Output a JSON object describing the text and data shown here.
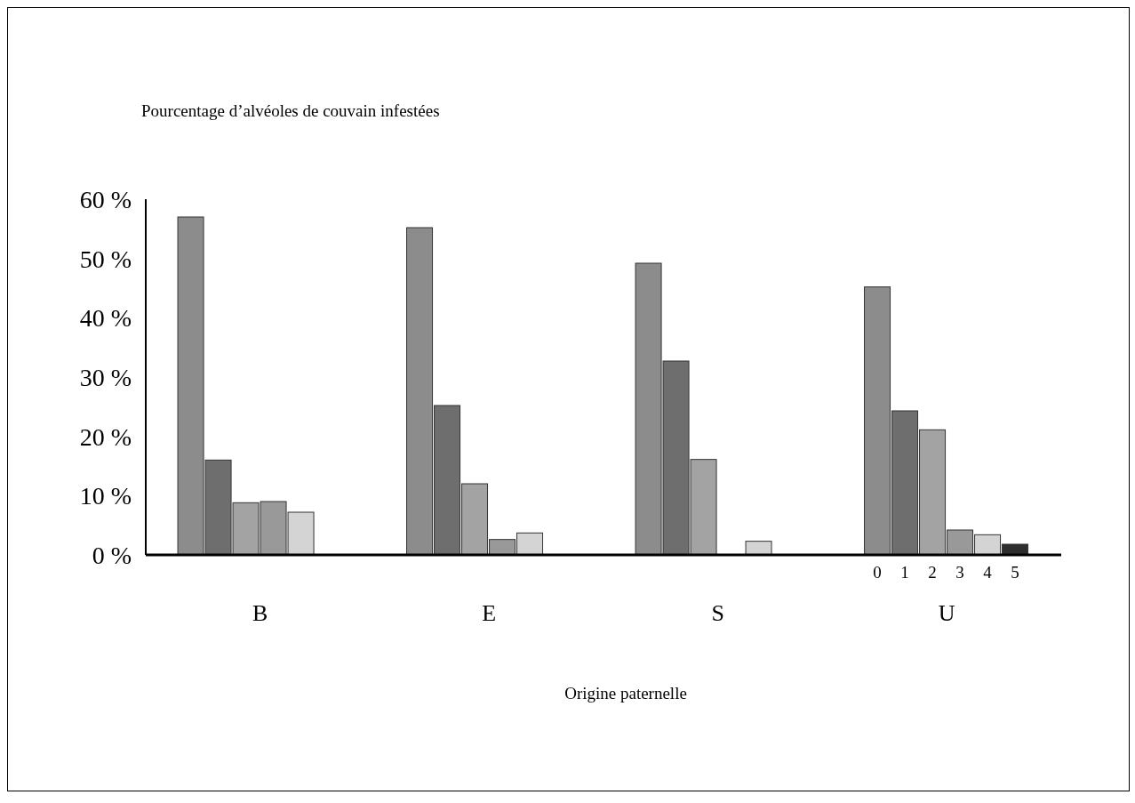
{
  "chart_data": {
    "type": "bar",
    "title": "Pourcentage d’alvéoles de couvain infestées",
    "xlabel": "Origine paternelle",
    "categories": [
      "B",
      "E",
      "S",
      "U"
    ],
    "series": [
      {
        "name": "0",
        "color": "#8c8c8c",
        "values": [
          57,
          55.2,
          49.2,
          45.2
        ]
      },
      {
        "name": "1",
        "color": "#6e6e6e",
        "values": [
          16,
          25.2,
          32.7,
          24.3
        ]
      },
      {
        "name": "2",
        "color": "#a3a3a3",
        "values": [
          8.8,
          12,
          16.1,
          21.1
        ]
      },
      {
        "name": "3",
        "color": "#999999",
        "values": [
          9,
          2.6,
          null,
          4.2
        ]
      },
      {
        "name": "4",
        "color": "#d4d4d4",
        "values": [
          7.2,
          3.7,
          2.3,
          3.4
        ]
      },
      {
        "name": "5",
        "color": "#2e2e2e",
        "values": [
          null,
          null,
          null,
          1.8
        ]
      }
    ],
    "ylim": [
      0,
      60
    ],
    "yticks": [
      {
        "value": 0,
        "label": "0 %"
      },
      {
        "value": 10,
        "label": "10 %"
      },
      {
        "value": 20,
        "label": "20 %"
      },
      {
        "value": 30,
        "label": "30 %"
      },
      {
        "value": 40,
        "label": "40 %"
      },
      {
        "value": 50,
        "label": "50 %"
      },
      {
        "value": 60,
        "label": "60 %"
      }
    ],
    "grid": false,
    "legend": false
  }
}
